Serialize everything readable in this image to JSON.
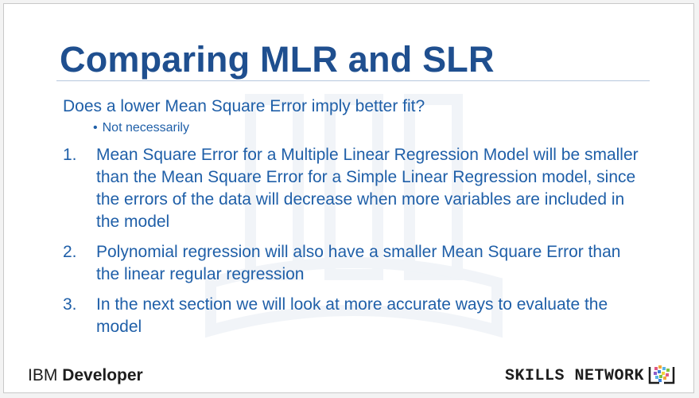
{
  "slide": {
    "title": "Comparing MLR and SLR",
    "question": "Does a lower Mean Square Error imply better fit?",
    "sub_bullet": "Not necessarily",
    "items": [
      {
        "num": "1.",
        "text": "Mean Square Error for a Multiple Linear Regression Model will be smaller than the Mean Square Error for a Simple Linear Regression model, since the errors of the data will decrease when more variables are included in the model"
      },
      {
        "num": "2.",
        "text": "Polynomial regression will also have a smaller Mean Square Error than the linear regular regression"
      },
      {
        "num": "3.",
        "text": "In the next section we will look at more accurate ways to evaluate the model"
      }
    ]
  },
  "footer": {
    "brand_prefix": "IBM",
    "brand_strong": "Developer",
    "skills_text": "SKILLS NETWORK",
    "skills_icon": "skills-network-logo"
  },
  "colors": {
    "title": "#1f4f8f",
    "body_text": "#1f5fa8",
    "footer_text": "#1d1d1d"
  }
}
